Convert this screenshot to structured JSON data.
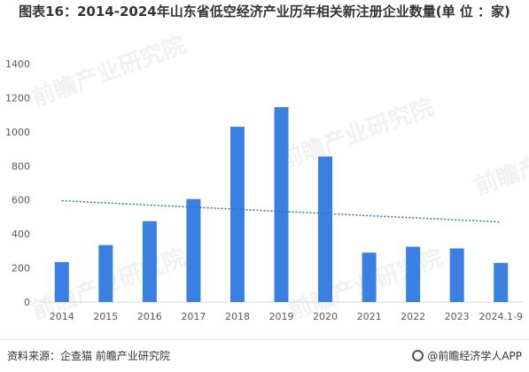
{
  "title": "图表16：2014-2024年山东省低空经济产业历年相关新注册企业数量(单 位 ：家)",
  "watermark_text": "前瞻产业研究院",
  "footer": {
    "source": "资料来源：企查猫 前瞻产业研究院",
    "app": "@前瞻经济学人APP"
  },
  "colors": {
    "bar": "#3a80e3",
    "trend": "#2e75b6",
    "axis": "#d9d9d9",
    "tick": "#595959"
  },
  "chart_data": {
    "type": "bar",
    "title": "图表16：2014-2024年山东省低空经济产业历年相关新注册企业数量(单 位 ：家)",
    "xlabel": "",
    "ylabel": "",
    "categories": [
      "2014",
      "2015",
      "2016",
      "2017",
      "2018",
      "2019",
      "2020",
      "2021",
      "2022",
      "2023",
      "2024.1-9"
    ],
    "series": [
      {
        "values": [
          235,
          335,
          475,
          605,
          1030,
          1145,
          855,
          290,
          325,
          315,
          230
        ]
      }
    ],
    "trendline": {
      "style": "dotted",
      "start": 595,
      "end": 470
    },
    "ylim": [
      0,
      1400
    ],
    "yticks": [
      0,
      200,
      400,
      600,
      800,
      1000,
      1200,
      1400
    ],
    "grid": false,
    "legend": "none"
  }
}
